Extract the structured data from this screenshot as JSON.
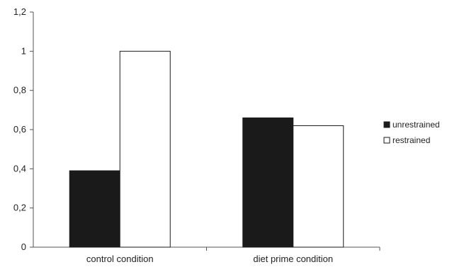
{
  "chart_data": {
    "type": "bar",
    "categories": [
      "control condition",
      "diet prime condition"
    ],
    "series": [
      {
        "name": "unrestrained",
        "values": [
          0.39,
          0.66
        ],
        "color": "#1a1a1a"
      },
      {
        "name": "restrained",
        "values": [
          1.0,
          0.62
        ],
        "color": "#ffffff"
      }
    ],
    "y_ticks": [
      "0",
      "0,2",
      "0,4",
      "0,6",
      "0,8",
      "1",
      "1,2"
    ],
    "ylim": [
      0,
      1.2
    ],
    "grid": false,
    "legend_position": "right"
  }
}
